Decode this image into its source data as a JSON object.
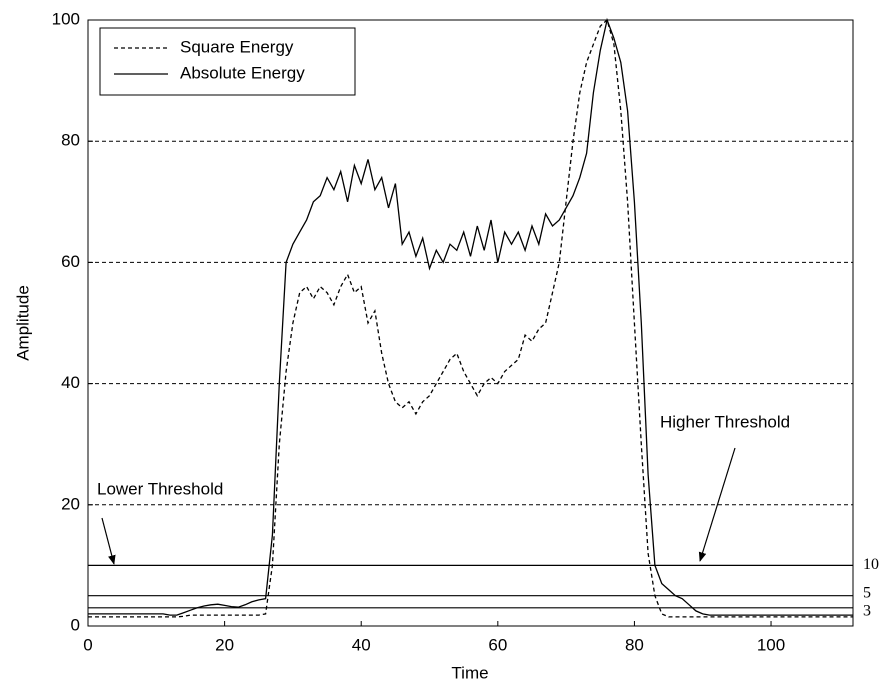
{
  "chart_data": {
    "type": "line",
    "x_label": "Time",
    "y_label": "Amplitude",
    "x": [
      0,
      1,
      2,
      3,
      4,
      5,
      6,
      7,
      8,
      9,
      10,
      11,
      12,
      13,
      14,
      15,
      16,
      17,
      18,
      19,
      20,
      21,
      22,
      23,
      24,
      25,
      26,
      27,
      28,
      29,
      30,
      31,
      32,
      33,
      34,
      35,
      36,
      37,
      38,
      39,
      40,
      41,
      42,
      43,
      44,
      45,
      46,
      47,
      48,
      49,
      50,
      51,
      52,
      53,
      54,
      55,
      56,
      57,
      58,
      59,
      60,
      61,
      62,
      63,
      64,
      65,
      66,
      67,
      68,
      69,
      70,
      71,
      72,
      73,
      74,
      75,
      76,
      77,
      78,
      79,
      80,
      81,
      82,
      83,
      84,
      85,
      86,
      87,
      88,
      89,
      90,
      91,
      92,
      93,
      94,
      95,
      96,
      97,
      98,
      99,
      100,
      101,
      102,
      103,
      104,
      105,
      106,
      107,
      108,
      109,
      110,
      111,
      112
    ],
    "series": [
      {
        "name": "Square Energy",
        "color": "#000000",
        "style": "dashed",
        "values": [
          1.5,
          1.5,
          1.5,
          1.5,
          1.5,
          1.5,
          1.5,
          1.5,
          1.5,
          1.5,
          1.5,
          1.5,
          1.5,
          1.5,
          1.6,
          1.8,
          1.8,
          1.8,
          1.8,
          1.8,
          1.8,
          1.8,
          1.8,
          1.8,
          1.8,
          1.8,
          2,
          10,
          30,
          42,
          50,
          55,
          56,
          54,
          56,
          55,
          53,
          56,
          58,
          55,
          56,
          50,
          52,
          45,
          40,
          37,
          36,
          37,
          35,
          37,
          38,
          40,
          42,
          44,
          45,
          42,
          40,
          38,
          40,
          41,
          40,
          42,
          43,
          44,
          48,
          47,
          49,
          50,
          55,
          60,
          70,
          80,
          88,
          93,
          96,
          99,
          100,
          96,
          85,
          70,
          50,
          30,
          12,
          5,
          2,
          1.5,
          1.5,
          1.5,
          1.5,
          1.5,
          1.5,
          1.5,
          1.5,
          1.5,
          1.5,
          1.5,
          1.5,
          1.5,
          1.5,
          1.5,
          1.5,
          1.5,
          1.5,
          1.5,
          1.5,
          1.5,
          1.5,
          1.5,
          1.5,
          1.5,
          1.5,
          1.5,
          1.5
        ]
      },
      {
        "name": "Absolute Energy",
        "color": "#000000",
        "style": "solid",
        "values": [
          2,
          2,
          2,
          2,
          2,
          2,
          2,
          2,
          2,
          2,
          2,
          2,
          1.8,
          1.8,
          2.2,
          2.6,
          3,
          3.3,
          3.5,
          3.6,
          3.4,
          3.2,
          3.1,
          3.5,
          4,
          4.3,
          4.5,
          15,
          40,
          60,
          63,
          65,
          67,
          70,
          71,
          74,
          72,
          75,
          70,
          76,
          73,
          77,
          72,
          74,
          69,
          73,
          63,
          65,
          61,
          64,
          59,
          62,
          60,
          63,
          62,
          65,
          61,
          66,
          62,
          67,
          60,
          65,
          63,
          65,
          62,
          66,
          63,
          68,
          66,
          67,
          69,
          71,
          74,
          78,
          88,
          95,
          100,
          97,
          93,
          85,
          70,
          50,
          25,
          10,
          7,
          6,
          5,
          4.5,
          3.5,
          2.5,
          2,
          1.8,
          1.8,
          1.8,
          1.8,
          1.8,
          1.8,
          1.8,
          1.8,
          1.8,
          1.8,
          1.8,
          1.8,
          1.8,
          1.8,
          1.8,
          1.8,
          1.8,
          1.8,
          1.8,
          1.8,
          1.8,
          1.8
        ]
      }
    ],
    "thresholds": [
      10,
      5,
      3
    ],
    "annotations": [
      "Lower Threshold",
      "Higher Threshold"
    ],
    "xlim": [
      0,
      112
    ],
    "ylim": [
      0,
      100
    ],
    "xticks": [
      0,
      20,
      40,
      60,
      80,
      100
    ],
    "yticks": [
      0,
      20,
      40,
      60,
      80,
      100
    ],
    "grid": true,
    "legend": "upper left"
  }
}
